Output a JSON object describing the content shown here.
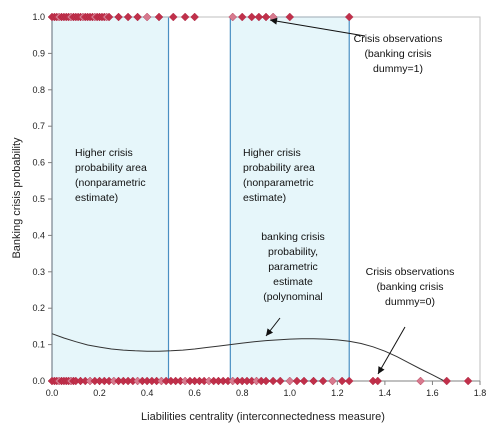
{
  "chart_data": {
    "type": "scatter",
    "title": "",
    "xlabel": "Liabilities centrality (interconnectedness measure)",
    "ylabel": "Banking crisis probability",
    "xlim": [
      0,
      1.8
    ],
    "ylim": [
      0,
      1.0
    ],
    "x_ticks": [
      "0.0",
      "0.2",
      "0.4",
      "0.6",
      "0.8",
      "1.0",
      "1.2",
      "1.4",
      "1.6",
      "1.8"
    ],
    "y_ticks": [
      "0.0",
      "0.1",
      "0.2",
      "0.3",
      "0.4",
      "0.5",
      "0.6",
      "0.7",
      "0.8",
      "0.9",
      "1.0"
    ],
    "grid": false,
    "colors": {
      "marker": "#c0304a",
      "marker_light": "#d77a8e",
      "shade": "#e6f6fa",
      "shade_border": "#4a8fc2",
      "curve": "#333333"
    },
    "shaded_regions": [
      {
        "x0": 0.0,
        "x1": 0.49
      },
      {
        "x0": 0.75,
        "x1": 1.25
      }
    ],
    "series": [
      {
        "values_x": [
          0.0,
          0.01,
          0.02,
          0.03,
          0.04,
          0.05,
          0.06,
          0.07,
          0.08,
          0.09,
          0.1,
          0.11,
          0.12,
          0.13,
          0.14,
          0.15,
          0.16,
          0.17,
          0.18,
          0.19,
          0.2,
          0.21,
          0.22,
          0.23,
          0.24,
          0.28,
          0.32,
          0.36,
          0.4,
          0.45,
          0.51,
          0.56,
          0.6,
          0.76,
          0.8,
          0.84,
          0.87,
          0.9,
          0.93,
          1.0,
          1.25
        ],
        "values_y": [
          1.0,
          1.0,
          1.0,
          1.0,
          1.0,
          1.0,
          1.0,
          1.0,
          1.0,
          1.0,
          1.0,
          1.0,
          1.0,
          1.0,
          1.0,
          1.0,
          1.0,
          1.0,
          1.0,
          1.0,
          1.0,
          1.0,
          1.0,
          1.0,
          1.0,
          1.0,
          1.0,
          1.0,
          1.0,
          1.0,
          1.0,
          1.0,
          1.0,
          1.0,
          1.0,
          1.0,
          1.0,
          1.0,
          1.0,
          1.0,
          1.0
        ]
      },
      {
        "values_x": [
          0.0,
          0.01,
          0.02,
          0.03,
          0.04,
          0.05,
          0.06,
          0.07,
          0.08,
          0.09,
          0.1,
          0.12,
          0.14,
          0.16,
          0.18,
          0.2,
          0.22,
          0.24,
          0.26,
          0.28,
          0.3,
          0.32,
          0.34,
          0.36,
          0.38,
          0.4,
          0.42,
          0.44,
          0.46,
          0.48,
          0.5,
          0.52,
          0.54,
          0.56,
          0.58,
          0.6,
          0.62,
          0.64,
          0.66,
          0.68,
          0.7,
          0.72,
          0.74,
          0.76,
          0.78,
          0.8,
          0.82,
          0.84,
          0.86,
          0.88,
          0.9,
          0.93,
          0.96,
          1.0,
          1.03,
          1.06,
          1.1,
          1.14,
          1.18,
          1.22,
          1.25,
          1.35,
          1.37,
          1.55,
          1.66,
          1.75
        ],
        "values_y": [
          0,
          0,
          0,
          0,
          0,
          0,
          0,
          0,
          0,
          0,
          0,
          0,
          0,
          0,
          0,
          0,
          0,
          0,
          0,
          0,
          0,
          0,
          0,
          0,
          0,
          0,
          0,
          0,
          0,
          0,
          0,
          0,
          0,
          0,
          0,
          0,
          0,
          0,
          0,
          0,
          0,
          0,
          0,
          0,
          0,
          0,
          0,
          0,
          0,
          0,
          0,
          0,
          0,
          0,
          0,
          0,
          0,
          0,
          0,
          0,
          0,
          0,
          0,
          0,
          0,
          0
        ]
      },
      {
        "type": "line",
        "values_x": [
          0.0,
          0.05,
          0.1,
          0.15,
          0.2,
          0.25,
          0.3,
          0.35,
          0.4,
          0.45,
          0.5,
          0.55,
          0.6,
          0.65,
          0.7,
          0.75,
          0.8,
          0.85,
          0.9,
          0.95,
          1.0,
          1.05,
          1.1,
          1.15,
          1.2,
          1.25,
          1.3,
          1.35,
          1.4,
          1.45,
          1.5,
          1.55,
          1.6,
          1.65
        ],
        "values_y": [
          0.13,
          0.118,
          0.108,
          0.099,
          0.093,
          0.088,
          0.085,
          0.083,
          0.082,
          0.082,
          0.083,
          0.085,
          0.088,
          0.092,
          0.096,
          0.1,
          0.104,
          0.108,
          0.111,
          0.113,
          0.115,
          0.116,
          0.116,
          0.115,
          0.113,
          0.109,
          0.103,
          0.094,
          0.082,
          0.067,
          0.05,
          0.033,
          0.017,
          0.0
        ]
      }
    ],
    "annotations": [
      {
        "lines": [
          "Crisis observations",
          "(banking crisis",
          "dummy=1)"
        ]
      },
      {
        "lines": [
          "Higher crisis",
          "probability area",
          "(nonparametric",
          "estimate)"
        ]
      },
      {
        "lines": [
          "Higher crisis",
          "probability  area",
          "(nonparametric",
          "estimate)"
        ]
      },
      {
        "lines": [
          "banking crisis",
          "probability,",
          "parametric",
          "estimate",
          "(polynominal"
        ]
      },
      {
        "lines": [
          "Crisis observations",
          "(banking crisis",
          "dummy=0)"
        ]
      }
    ]
  }
}
